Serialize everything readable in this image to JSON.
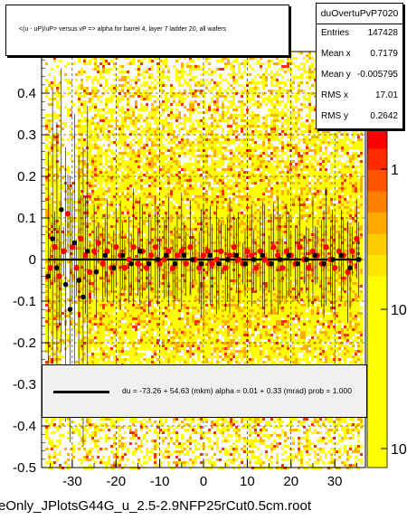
{
  "title": "<(u - uP)/uP> versus   vP => alpha for barrel 4, layer 7 ladder 20, all wafers",
  "stats": {
    "name": "duOvertuPvP7020",
    "rows": [
      {
        "key": "Entries",
        "value": "147428"
      },
      {
        "key": "Mean x",
        "value": "0.7179"
      },
      {
        "key": "Mean y",
        "value": "-0.005795"
      },
      {
        "key": "RMS x",
        "value": "17.01"
      },
      {
        "key": "RMS y",
        "value": "0.2642"
      }
    ]
  },
  "fit_text": "du =   -73.26 +  54.63 (mkm) alpha =     0.01 +   0.33 (mrad) prob = 1.000",
  "footer": "eOnly_JPlotsG44G_u_2.5-2.9NFP25rCut0.5cm.root",
  "colors": {
    "profile_red": "#ff0000",
    "profile_black": "#000000",
    "heat_yellow": "#ffff00",
    "heat_orange": "#ffb000",
    "heat_red": "#ff3000",
    "grid": "#000000"
  },
  "chart_data": {
    "type": "heatmap",
    "xlim": [
      -37,
      37
    ],
    "ylim": [
      -0.5,
      0.5
    ],
    "x_ticks": [
      "-30",
      "-20",
      "-10",
      "0",
      "10",
      "20",
      "30"
    ],
    "x_tick_values": [
      -30,
      -20,
      -10,
      0,
      10,
      20,
      30
    ],
    "y_ticks": [
      "-0.5",
      "-0.4",
      "-0.3",
      "-0.2",
      "-0.1",
      "0",
      "0.1",
      "0.2",
      "0.3",
      "0.4"
    ],
    "y_tick_values": [
      -0.5,
      -0.4,
      -0.3,
      -0.2,
      -0.1,
      0,
      0.1,
      0.2,
      0.3,
      0.4
    ],
    "z_scale": "log",
    "z_ticks": [
      "1",
      "10",
      "10"
    ],
    "grid": true,
    "fit_line_y": 0.0,
    "profile_red": [
      [
        -35,
        -0.02
      ],
      [
        -34,
        0.03
      ],
      [
        -33,
        -0.04
      ],
      [
        -32,
        0.02
      ],
      [
        -31,
        0.11
      ],
      [
        -30,
        0.03
      ],
      [
        -29,
        -0.02
      ],
      [
        -28,
        0.05
      ],
      [
        -27,
        0.01
      ],
      [
        -26,
        -0.03
      ],
      [
        -25,
        0.02
      ],
      [
        -24,
        0.04
      ],
      [
        -23,
        -0.01
      ],
      [
        -22,
        0.02
      ],
      [
        -21,
        -0.02
      ],
      [
        -20,
        0.03
      ],
      [
        -19,
        0.01
      ],
      [
        -18,
        -0.02
      ],
      [
        -17,
        0.0
      ],
      [
        -16,
        0.03
      ],
      [
        -15,
        -0.01
      ],
      [
        -14,
        0.02
      ],
      [
        -13,
        -0.02
      ],
      [
        -12,
        0.01
      ],
      [
        -11,
        0.03
      ],
      [
        -10,
        -0.01
      ],
      [
        -9,
        0.0
      ],
      [
        -8,
        0.02
      ],
      [
        -7,
        -0.02
      ],
      [
        -6,
        0.01
      ],
      [
        -5,
        0.02
      ],
      [
        -4,
        -0.01
      ],
      [
        -3,
        0.03
      ],
      [
        -2,
        0.0
      ],
      [
        -1,
        -0.02
      ],
      [
        0,
        0.01
      ],
      [
        1,
        0.02
      ],
      [
        2,
        -0.01
      ],
      [
        3,
        0.0
      ],
      [
        4,
        0.02
      ],
      [
        5,
        -0.02
      ],
      [
        6,
        0.01
      ],
      [
        7,
        0.03
      ],
      [
        8,
        0.0
      ],
      [
        9,
        -0.01
      ],
      [
        10,
        0.02
      ],
      [
        11,
        0.01
      ],
      [
        12,
        -0.02
      ],
      [
        13,
        0.02
      ],
      [
        14,
        0.0
      ],
      [
        15,
        -0.01
      ],
      [
        16,
        0.03
      ],
      [
        17,
        0.01
      ],
      [
        18,
        -0.02
      ],
      [
        19,
        0.02
      ],
      [
        20,
        0.01
      ],
      [
        21,
        -0.01
      ],
      [
        22,
        0.03
      ],
      [
        23,
        0.0
      ],
      [
        24,
        -0.02
      ],
      [
        25,
        0.02
      ],
      [
        26,
        0.01
      ],
      [
        27,
        -0.01
      ],
      [
        28,
        0.03
      ],
      [
        29,
        0.0
      ],
      [
        30,
        -0.02
      ],
      [
        31,
        0.02
      ],
      [
        32,
        0.01
      ],
      [
        33,
        -0.03
      ],
      [
        34,
        0.02
      ],
      [
        35,
        0.05
      ]
    ],
    "profile_black": [
      [
        -35.5,
        -0.04
      ],
      [
        -34.5,
        0.05
      ],
      [
        -33.5,
        -0.02
      ],
      [
        -32.5,
        0.12
      ],
      [
        -31.5,
        -0.06
      ],
      [
        -30.5,
        -0.12
      ],
      [
        -29.5,
        0.04
      ],
      [
        -28.5,
        -0.05
      ],
      [
        -27.5,
        -0.09
      ],
      [
        -26.5,
        0.02
      ],
      [
        -24.5,
        -0.03
      ],
      [
        -22.5,
        0.01
      ],
      [
        -20.5,
        -0.02
      ],
      [
        -18.5,
        0.01
      ],
      [
        -16.5,
        -0.01
      ],
      [
        -14.5,
        0.02
      ],
      [
        -12.5,
        -0.01
      ],
      [
        -10.5,
        0.0
      ],
      [
        -8.5,
        0.01
      ],
      [
        -6.5,
        -0.01
      ],
      [
        -4.5,
        0.01
      ],
      [
        -2.5,
        0.0
      ],
      [
        -0.5,
        -0.01
      ],
      [
        1.5,
        0.01
      ],
      [
        3.5,
        -0.01
      ],
      [
        5.5,
        0.0
      ],
      [
        7.5,
        0.01
      ],
      [
        9.5,
        -0.01
      ],
      [
        11.5,
        0.0
      ],
      [
        13.5,
        0.01
      ],
      [
        15.5,
        -0.01
      ],
      [
        17.5,
        0.0
      ],
      [
        19.5,
        0.01
      ],
      [
        21.5,
        -0.01
      ],
      [
        23.5,
        0.0
      ],
      [
        25.5,
        0.01
      ],
      [
        27.5,
        -0.01
      ],
      [
        29.5,
        0.0
      ],
      [
        31.5,
        0.01
      ],
      [
        33.5,
        -0.02
      ],
      [
        35.5,
        0.0
      ]
    ]
  }
}
